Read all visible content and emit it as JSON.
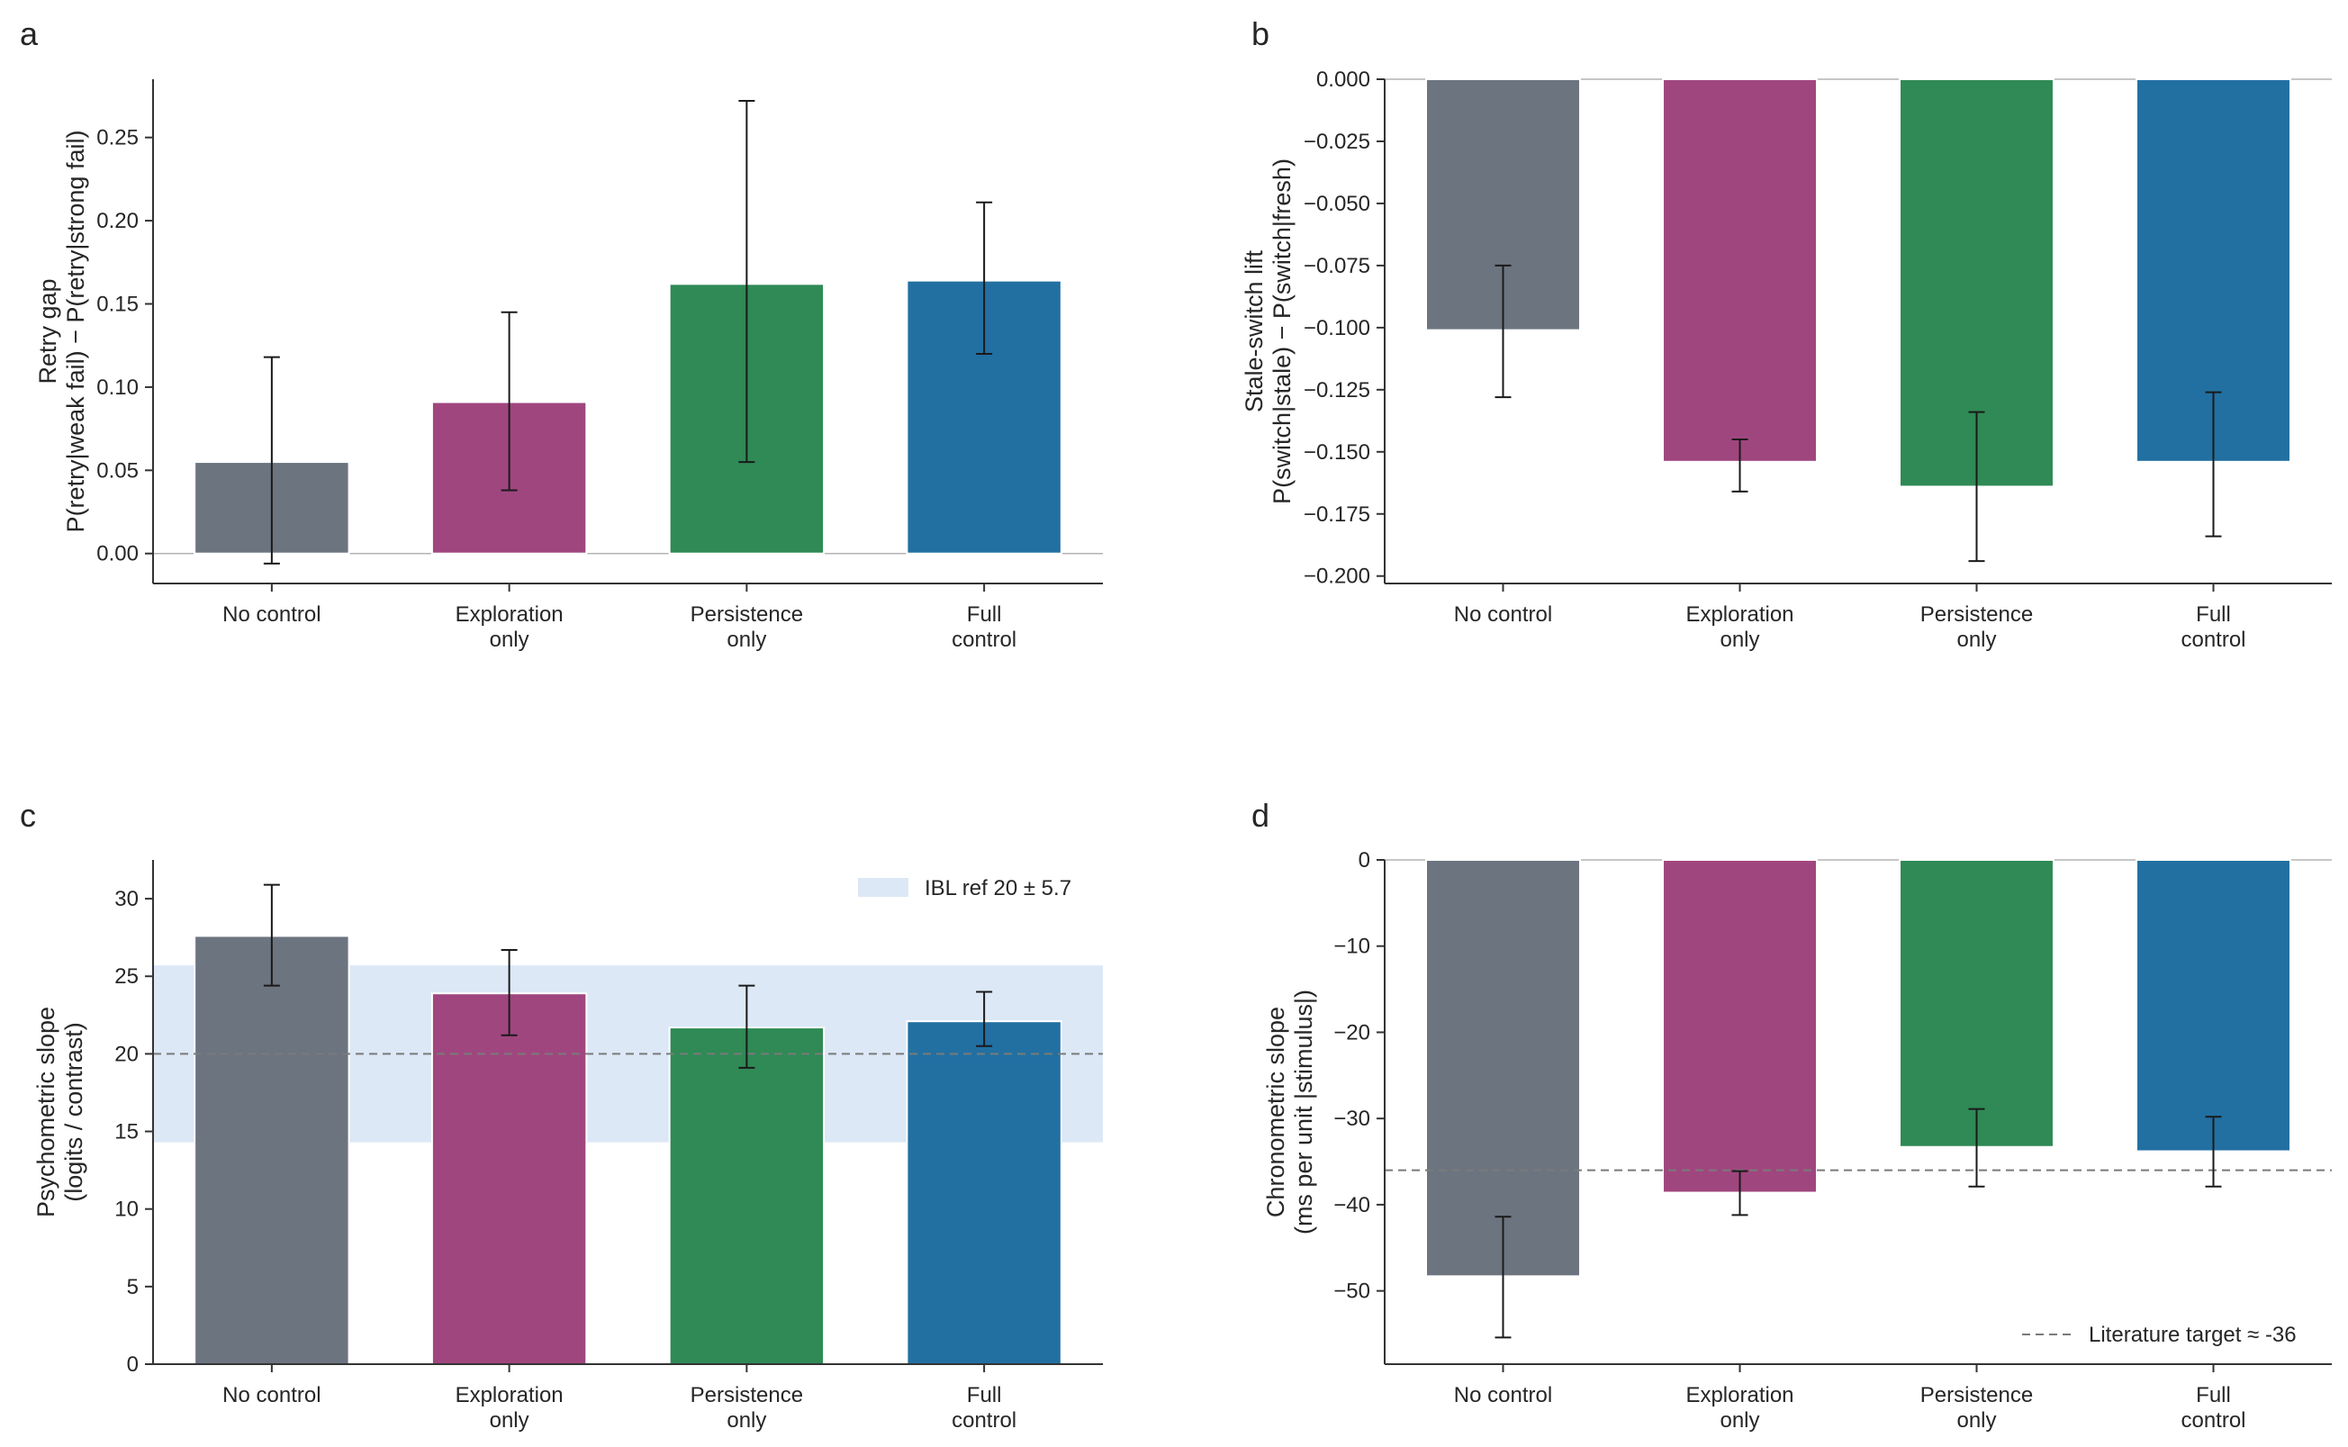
{
  "colors": {
    "no_control": "#6c7480",
    "exploration_only": "#a0467f",
    "persistence_only": "#2f8a55",
    "full_control": "#2270a2",
    "error_bar": "#1a1a1a",
    "axis": "#333333",
    "zero_line": "#b3b3b3",
    "reference_line": "#7a7a7a",
    "reference_band": "#dce8f6"
  },
  "chart_data": [
    {
      "id": "a",
      "panel_letter": "a",
      "type": "bar",
      "categories": [
        [
          "No control"
        ],
        [
          "Exploration",
          "only"
        ],
        [
          "Persistence",
          "only"
        ],
        [
          "Full",
          "control"
        ]
      ],
      "values": [
        0.055,
        0.091,
        0.162,
        0.164
      ],
      "error_low": [
        -0.006,
        0.038,
        0.055,
        0.12
      ],
      "error_high": [
        0.118,
        0.145,
        0.272,
        0.211
      ],
      "ylabel": [
        "Retry gap",
        "P(retry|weak fail) − P(retry|strong fail)"
      ],
      "ylim": [
        -0.018,
        0.285
      ],
      "yticks": [
        0.0,
        0.05,
        0.1,
        0.15,
        0.2,
        0.25
      ],
      "ytick_labels": [
        "0.00",
        "0.05",
        "0.10",
        "0.15",
        "0.20",
        "0.25"
      ],
      "zero_line": true
    },
    {
      "id": "b",
      "panel_letter": "b",
      "type": "bar",
      "categories": [
        [
          "No control"
        ],
        [
          "Exploration",
          "only"
        ],
        [
          "Persistence",
          "only"
        ],
        [
          "Full",
          "control"
        ]
      ],
      "values": [
        -0.101,
        -0.154,
        -0.164,
        -0.154
      ],
      "error_low": [
        -0.128,
        -0.166,
        -0.194,
        -0.184
      ],
      "error_high": [
        -0.075,
        -0.145,
        -0.134,
        -0.126
      ],
      "ylabel": [
        "Stale-switch lift",
        "P(switch|stale) − P(switch|fresh)"
      ],
      "ylim": [
        -0.203,
        0.0
      ],
      "yticks": [
        0.0,
        -0.025,
        -0.05,
        -0.075,
        -0.1,
        -0.125,
        -0.15,
        -0.175,
        -0.2
      ],
      "ytick_labels": [
        "0.000",
        "−0.025",
        "−0.050",
        "−0.075",
        "−0.100",
        "−0.125",
        "−0.150",
        "−0.175",
        "−0.200"
      ],
      "zero_line": true
    },
    {
      "id": "c",
      "panel_letter": "c",
      "type": "bar",
      "categories": [
        [
          "No control"
        ],
        [
          "Exploration",
          "only"
        ],
        [
          "Persistence",
          "only"
        ],
        [
          "Full",
          "control"
        ]
      ],
      "values": [
        27.6,
        23.9,
        21.7,
        22.1
      ],
      "error_low": [
        24.4,
        21.2,
        19.1,
        20.5
      ],
      "error_high": [
        30.9,
        26.7,
        24.4,
        24.0
      ],
      "ylabel": [
        "Psychometric slope",
        "(logits / contrast)"
      ],
      "ylim": [
        0,
        32.5
      ],
      "yticks": [
        0,
        5,
        10,
        15,
        20,
        25,
        30
      ],
      "ytick_labels": [
        "0",
        "5",
        "10",
        "15",
        "20",
        "25",
        "30"
      ],
      "zero_line": false,
      "reference_band": {
        "center": 20,
        "half_width": 5.7,
        "label": "IBL ref 20 ± 5.7"
      },
      "reference_line": {
        "value": 20
      },
      "legend": "top-right"
    },
    {
      "id": "d",
      "panel_letter": "d",
      "type": "bar",
      "categories": [
        [
          "No control"
        ],
        [
          "Exploration",
          "only"
        ],
        [
          "Persistence",
          "only"
        ],
        [
          "Full",
          "control"
        ]
      ],
      "values": [
        -48.3,
        -38.6,
        -33.3,
        -33.8
      ],
      "error_low": [
        -55.4,
        -41.2,
        -37.9,
        -37.9
      ],
      "error_high": [
        -41.4,
        -36.1,
        -28.9,
        -29.8
      ],
      "ylabel": [
        "Chronometric slope",
        "(ms per unit |stimulus|)"
      ],
      "ylim": [
        -58.5,
        0
      ],
      "yticks": [
        0,
        -10,
        -20,
        -30,
        -40,
        -50
      ],
      "ytick_labels": [
        "0",
        "−10",
        "−20",
        "−30",
        "−40",
        "−50"
      ],
      "zero_line": true,
      "reference_line": {
        "value": -36,
        "label": "Literature target ≈ -36"
      },
      "legend": "bottom-right"
    }
  ]
}
